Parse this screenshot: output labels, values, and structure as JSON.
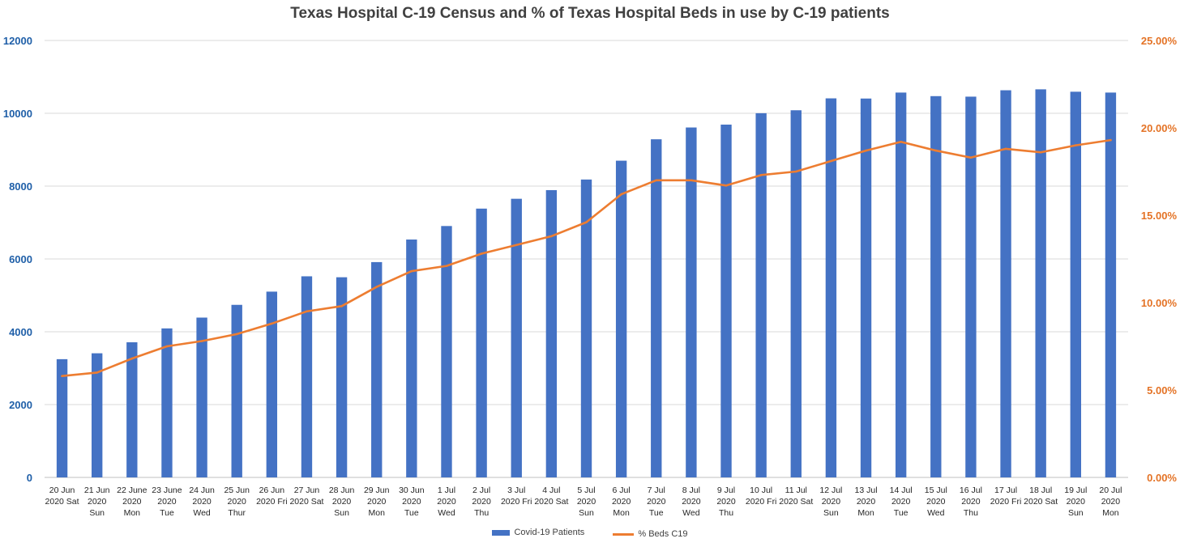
{
  "chart_data": {
    "type": "bar",
    "title": "Texas Hospital C-19 Census and % of Texas Hospital Beds in use by C-19 patients",
    "categories": [
      [
        "20 Jun",
        "2020 Sat"
      ],
      [
        "21 Jun",
        "2020",
        "Sun"
      ],
      [
        "22 June",
        "2020",
        "Mon"
      ],
      [
        "23 June",
        "2020",
        "Tue"
      ],
      [
        "24 Jun",
        "2020",
        "Wed"
      ],
      [
        "25 Jun",
        "2020",
        "Thur"
      ],
      [
        "26 Jun",
        "2020 Fri"
      ],
      [
        "27 Jun",
        "2020 Sat"
      ],
      [
        "28 Jun",
        "2020",
        "Sun"
      ],
      [
        "29 Jun",
        "2020",
        "Mon"
      ],
      [
        "30 Jun",
        "2020",
        "Tue"
      ],
      [
        "1 Jul",
        "2020",
        "Wed"
      ],
      [
        "2 Jul",
        "2020",
        "Thu"
      ],
      [
        "3 Jul",
        "2020 Fri"
      ],
      [
        "4 Jul",
        "2020 Sat"
      ],
      [
        "5 Jul",
        "2020",
        "Sun"
      ],
      [
        "6 Jul",
        "2020",
        "Mon"
      ],
      [
        "7 Jul",
        "2020",
        "Tue"
      ],
      [
        "8 Jul",
        "2020",
        "Wed"
      ],
      [
        "9 Jul",
        "2020",
        "Thu"
      ],
      [
        "10 Jul",
        "2020 Fri"
      ],
      [
        "11 Jul",
        "2020 Sat"
      ],
      [
        "12 Jul",
        "2020",
        "Sun"
      ],
      [
        "13 Jul",
        "2020",
        "Mon"
      ],
      [
        "14 Jul",
        "2020",
        "Tue"
      ],
      [
        "15 Jul",
        "2020",
        "Wed"
      ],
      [
        "16 Jul",
        "2020",
        "Thu"
      ],
      [
        "17 Jul",
        "2020 Fri"
      ],
      [
        "18 Jul",
        "2020 Sat"
      ],
      [
        "19 Jul",
        "2020",
        "Sun"
      ],
      [
        "20 Jul",
        "2020",
        "Mon"
      ]
    ],
    "series": [
      {
        "name": "Covid-19 Patients",
        "type": "bar",
        "axis": "left",
        "color": "#4472c4",
        "values": [
          3247,
          3409,
          3711,
          4092,
          4389,
          4739,
          5102,
          5523,
          5497,
          5913,
          6533,
          6904,
          7382,
          7652,
          7890,
          8181,
          8698,
          9286,
          9610,
          9689,
          10002,
          10083,
          10410,
          10405,
          10569,
          10471,
          10457,
          10632,
          10658,
          10592,
          10569
        ]
      },
      {
        "name": "% Beds C19",
        "type": "line",
        "axis": "right",
        "color": "#ed7d31",
        "values": [
          5.8,
          6.0,
          6.8,
          7.5,
          7.8,
          8.2,
          8.8,
          9.5,
          9.8,
          10.9,
          11.8,
          12.1,
          12.8,
          13.3,
          13.8,
          14.6,
          16.2,
          17.0,
          17.0,
          16.7,
          17.3,
          17.5,
          18.1,
          18.7,
          19.2,
          18.7,
          18.3,
          18.8,
          18.6,
          19.0,
          19.3
        ]
      }
    ],
    "y_left": {
      "range": [
        0,
        12000
      ],
      "ticks": [
        "0",
        "2000",
        "4000",
        "6000",
        "8000",
        "10000",
        "12000"
      ],
      "color": "#1f5fa8"
    },
    "y_right": {
      "range": [
        0,
        25
      ],
      "ticks": [
        "0.00%",
        "5.00%",
        "10.00%",
        "15.00%",
        "20.00%",
        "25.00%"
      ],
      "color": "#e47326"
    },
    "grid": true,
    "legend_position": "bottom"
  }
}
